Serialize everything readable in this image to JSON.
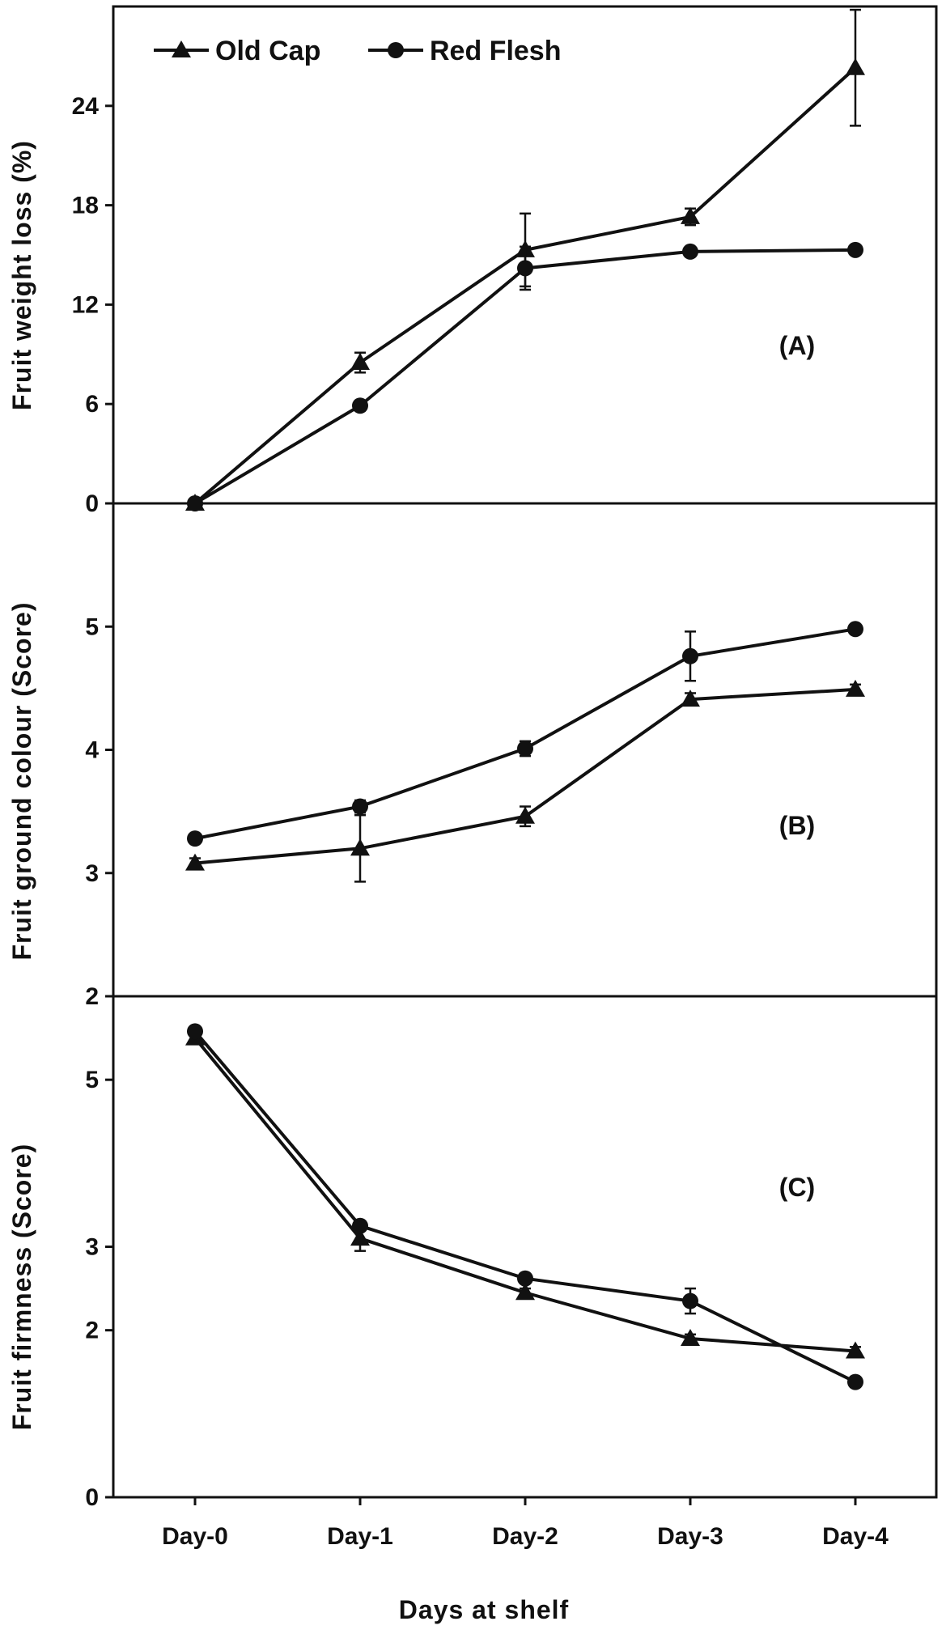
{
  "chart_data": [
    {
      "type": "line",
      "panel_label": "(A)",
      "ylabel": "Fruit weight loss (%)",
      "ylim": [
        0,
        30
      ],
      "yticks": [
        0,
        6,
        12,
        18,
        24
      ],
      "categories": [
        "Day-0",
        "Day-1",
        "Day-2",
        "Day-3",
        "Day-4"
      ],
      "series": [
        {
          "name": "Old Cap",
          "marker": "triangle",
          "values": [
            0,
            8.5,
            15.3,
            17.3,
            26.3
          ],
          "error": [
            0,
            0.6,
            2.2,
            0.5,
            3.5
          ]
        },
        {
          "name": "Red Flesh",
          "marker": "circle",
          "values": [
            0,
            5.9,
            14.2,
            15.2,
            15.3
          ],
          "error": [
            0,
            0.3,
            1.3,
            0.2,
            0.2
          ]
        }
      ]
    },
    {
      "type": "line",
      "panel_label": "(B)",
      "ylabel": "Fruit ground colour (Score)",
      "ylim": [
        2,
        6
      ],
      "yticks": [
        2,
        3,
        4,
        5
      ],
      "categories": [
        "Day-0",
        "Day-1",
        "Day-2",
        "Day-3",
        "Day-4"
      ],
      "series": [
        {
          "name": "Old Cap",
          "marker": "triangle",
          "values": [
            3.08,
            3.2,
            3.46,
            4.41,
            4.49
          ],
          "error": [
            0.04,
            0.27,
            0.08,
            0.05,
            0.04
          ]
        },
        {
          "name": "Red Flesh",
          "marker": "circle",
          "values": [
            3.28,
            3.54,
            4.01,
            4.76,
            4.98
          ],
          "error": [
            0.03,
            0.05,
            0.06,
            0.2,
            0.03
          ]
        }
      ]
    },
    {
      "type": "line",
      "panel_label": "(C)",
      "ylabel": "Fruit firmness (Score)",
      "ylim": [
        0,
        6
      ],
      "ytick_values": [
        0,
        2,
        3,
        5
      ],
      "yticks": [
        0,
        2,
        3,
        5
      ],
      "categories": [
        "Day-0",
        "Day-1",
        "Day-2",
        "Day-3",
        "Day-4"
      ],
      "series": [
        {
          "name": "Old Cap",
          "marker": "triangle",
          "values": [
            5.5,
            3.1,
            2.45,
            1.9,
            1.75
          ],
          "error": [
            0.05,
            0.15,
            0.05,
            0.05,
            0.05
          ]
        },
        {
          "name": "Red Flesh",
          "marker": "circle",
          "values": [
            5.58,
            3.25,
            2.62,
            2.35,
            1.38
          ],
          "error": [
            0.05,
            0.05,
            0.05,
            0.15,
            0.05
          ]
        }
      ]
    }
  ],
  "xlabel": "Days at shelf",
  "legend": {
    "placement": "top-left",
    "entries": [
      {
        "name": "Old Cap",
        "marker": "triangle"
      },
      {
        "name": "Red Flesh",
        "marker": "circle"
      }
    ]
  },
  "colors": {
    "line": "#111111",
    "background": "#ffffff"
  }
}
